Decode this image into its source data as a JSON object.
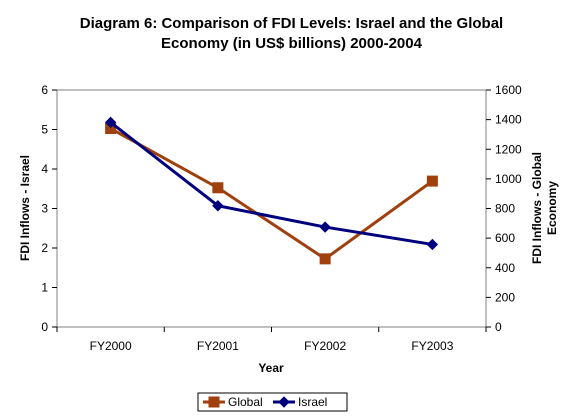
{
  "chart_data": {
    "type": "line",
    "title_line1": "Diagram 6: Comparison of FDI Levels: Israel and the Global",
    "title_line2": "Economy (in US$ billions) 2000-2004",
    "xlabel": "Year",
    "ylabel_left": "FDI Inflows - Israel",
    "ylabel_right_line1": "FDI Inflows - Global",
    "ylabel_right_line2": "Economy",
    "categories": [
      "FY2000",
      "FY2001",
      "FY2002",
      "FY2003"
    ],
    "ylim_left": [
      0,
      6
    ],
    "ylim_right": [
      0,
      1600
    ],
    "yticks_left": [
      "0",
      "1",
      "2",
      "3",
      "4",
      "5",
      "6"
    ],
    "yticks_right": [
      "0",
      "200",
      "400",
      "600",
      "800",
      "1000",
      "1200",
      "1400",
      "1600"
    ],
    "series": [
      {
        "name": "Global",
        "axis": "right",
        "color": "#a0400e",
        "marker": "square",
        "values": [
          1340,
          940,
          460,
          985
        ]
      },
      {
        "name": "Israel",
        "axis": "left",
        "color": "#00007f",
        "marker": "diamond",
        "values": [
          5.18,
          3.07,
          2.53,
          2.09
        ]
      }
    ],
    "legend_placement": "bottom",
    "grid": false
  }
}
